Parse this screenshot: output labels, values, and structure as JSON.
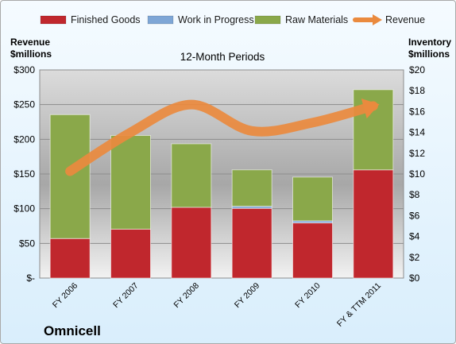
{
  "chart_data": {
    "type": "bar",
    "title": "12-Month Periods",
    "company": "Omnicell",
    "ylabel_left": [
      "Revenue",
      "$millions"
    ],
    "ylabel_right": [
      "Inventory",
      "$millions"
    ],
    "categories": [
      "FY 2006",
      "FY 2007",
      "FY 2008",
      "FY 2009",
      "FY 2010",
      "FY & TTM 2011"
    ],
    "stacked": true,
    "bar_axis": "right",
    "series": [
      {
        "name": "Finished Goods",
        "color": "#c0272d",
        "values": [
          3.8,
          4.7,
          6.8,
          6.7,
          5.3,
          10.4
        ]
      },
      {
        "name": "Work in Progress",
        "color": "#7ea6d6",
        "values": [
          0.0,
          0.0,
          0.0,
          0.2,
          0.2,
          0.0
        ]
      },
      {
        "name": "Raw Materials",
        "color": "#8aa84a",
        "values": [
          11.9,
          9.0,
          6.1,
          3.5,
          4.2,
          7.7
        ]
      }
    ],
    "line_series": {
      "name": "Revenue",
      "axis": "left",
      "color": "#ea8a3e",
      "values": [
        154,
        210,
        250,
        212,
        224,
        248
      ]
    },
    "ylim_left": [
      0,
      300
    ],
    "ylim_right": [
      0,
      20
    ],
    "left_ticks": [
      "$-",
      "$50",
      "$100",
      "$150",
      "$200",
      "$250",
      "$300"
    ],
    "right_ticks": [
      "$0",
      "$2",
      "$4",
      "$6",
      "$8",
      "$10",
      "$12",
      "$14",
      "$16",
      "$18",
      "$20"
    ],
    "legend_position": "top",
    "grid": true
  }
}
